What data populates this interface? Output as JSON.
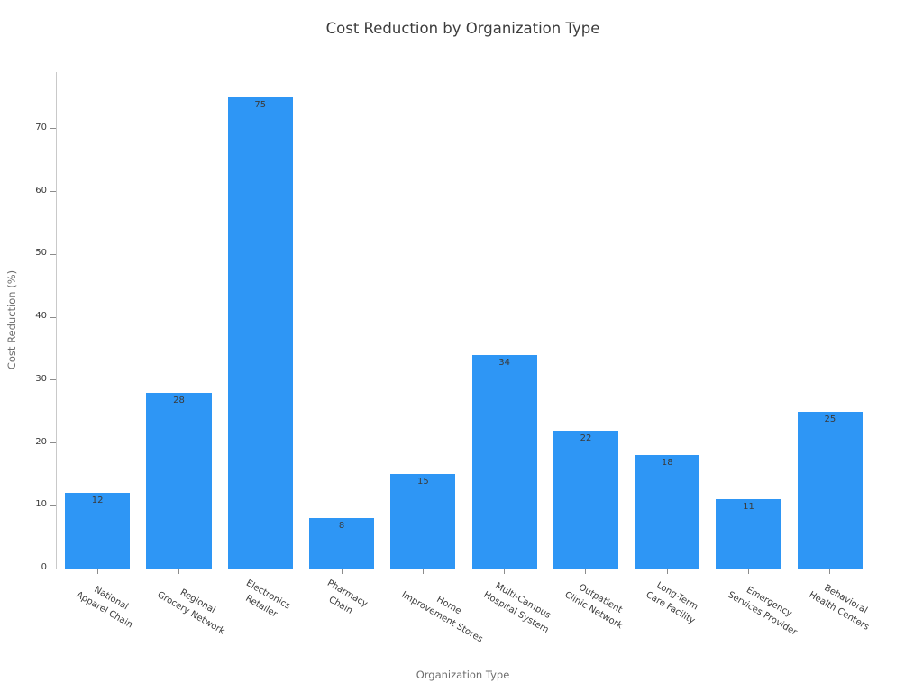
{
  "chart_data": {
    "type": "bar",
    "title": "Cost Reduction by Organization Type",
    "xlabel": "Organization Type",
    "ylabel": "Cost Reduction (%)",
    "categories": [
      "National\nApparel Chain",
      "Regional\nGrocery Network",
      "Electronics\nRetailer",
      "Pharmacy\nChain",
      "Home\nImprovement Stores",
      "Multi-Campus\nHospital System",
      "Outpatient\nClinic Network",
      "Long-Term\nCare Facility",
      "Emergency\nServices Provider",
      "Behavioral\nHealth Centers"
    ],
    "values": [
      12,
      28,
      75,
      8,
      15,
      34,
      22,
      18,
      11,
      25
    ],
    "value_labels": [
      "12",
      "28",
      "75",
      "8",
      "15",
      "34",
      "22",
      "18",
      "11",
      "25"
    ],
    "yticks": [
      0,
      10,
      20,
      30,
      40,
      50,
      60,
      70
    ],
    "ylim": [
      0,
      79
    ],
    "bar_color": "#2E96F5",
    "bar_width_fraction": 0.8,
    "grid": false,
    "legend": null,
    "x_label_rotation_deg": 30,
    "spine_color": "#c9c9c9",
    "tick_mark_color": "#8c8c8c",
    "title_color": "#3c3c3c",
    "axis_label_color": "#6d6d6d",
    "tick_label_color": "#3a3a3a",
    "value_label_color": "#3a3a3a",
    "background_color": "#ffffff"
  }
}
